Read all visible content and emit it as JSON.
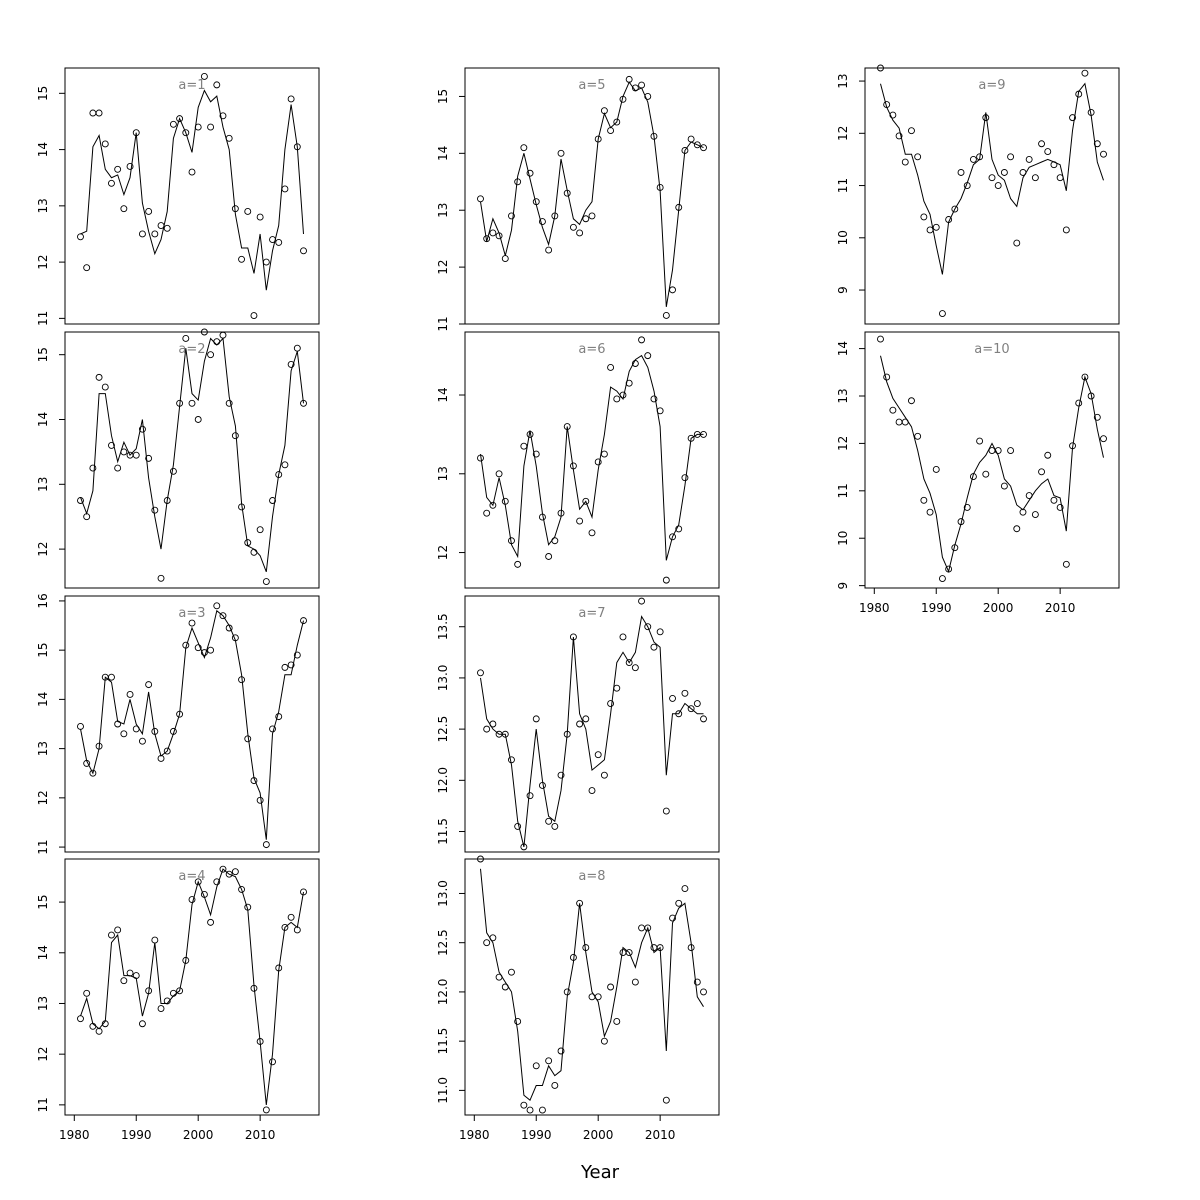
{
  "chart_data": {
    "type": "scatter",
    "xlabel": "Year",
    "x_ticks": [
      1980,
      1990,
      2000,
      2010
    ],
    "years": [
      1981,
      1982,
      1983,
      1984,
      1985,
      1986,
      1987,
      1988,
      1989,
      1990,
      1991,
      1992,
      1993,
      1994,
      1995,
      1996,
      1997,
      1998,
      1999,
      2000,
      2001,
      2002,
      2003,
      2004,
      2005,
      2006,
      2007,
      2008,
      2009,
      2010,
      2011,
      2012,
      2013,
      2014,
      2015,
      2016,
      2017
    ],
    "panels": [
      {
        "label": "a=1",
        "col": 0,
        "row": 0,
        "ylim": [
          10.9,
          15.45
        ],
        "yticks": [
          11,
          12,
          13,
          14,
          15
        ],
        "observed": [
          12.45,
          11.9,
          14.65,
          14.65,
          14.1,
          13.4,
          13.65,
          12.95,
          13.7,
          14.3,
          12.5,
          12.9,
          12.5,
          12.65,
          12.6,
          14.45,
          14.55,
          14.3,
          13.6,
          14.4,
          15.3,
          14.4,
          15.15,
          14.6,
          14.2,
          12.95,
          12.05,
          12.9,
          11.05,
          12.8,
          12.0,
          12.4,
          12.35,
          13.3,
          14.9,
          14.05,
          12.2
        ],
        "fitted": [
          12.5,
          12.55,
          14.05,
          14.25,
          13.65,
          13.5,
          13.55,
          13.2,
          13.5,
          14.3,
          13.05,
          12.55,
          12.15,
          12.4,
          12.9,
          14.2,
          14.55,
          14.3,
          13.95,
          14.75,
          15.05,
          14.85,
          14.95,
          14.4,
          14.0,
          12.85,
          12.25,
          12.25,
          11.8,
          12.5,
          11.5,
          12.2,
          12.65,
          14.0,
          14.8,
          14.05,
          12.5
        ]
      },
      {
        "label": "a=2",
        "col": 0,
        "row": 1,
        "ylim": [
          11.4,
          15.35
        ],
        "yticks": [
          12,
          13,
          14,
          15
        ],
        "observed": [
          12.75,
          12.5,
          13.25,
          14.65,
          14.5,
          13.6,
          13.25,
          13.5,
          13.45,
          13.45,
          13.85,
          13.4,
          12.6,
          11.55,
          12.75,
          13.2,
          14.25,
          15.25,
          14.25,
          14.0,
          15.35,
          15.0,
          15.2,
          15.3,
          14.25,
          13.75,
          12.65,
          12.1,
          11.95,
          12.3,
          11.5,
          12.75,
          13.15,
          13.3,
          14.85,
          15.1,
          14.25
        ],
        "fitted": [
          12.8,
          12.55,
          12.9,
          14.4,
          14.4,
          13.75,
          13.35,
          13.65,
          13.45,
          13.55,
          14.0,
          13.1,
          12.5,
          12.0,
          12.75,
          13.3,
          14.2,
          15.1,
          14.4,
          14.3,
          14.9,
          15.25,
          15.15,
          15.25,
          14.35,
          13.9,
          12.7,
          12.05,
          12.0,
          11.9,
          11.65,
          12.5,
          13.15,
          13.6,
          14.75,
          15.05,
          14.25
        ]
      },
      {
        "label": "a=3",
        "col": 0,
        "row": 2,
        "ylim": [
          10.9,
          16.1
        ],
        "yticks": [
          11,
          12,
          13,
          14,
          15,
          16
        ],
        "observed": [
          13.45,
          12.7,
          12.5,
          13.05,
          14.45,
          14.45,
          13.5,
          13.3,
          14.1,
          13.4,
          13.15,
          14.3,
          13.35,
          12.8,
          12.95,
          13.35,
          13.7,
          15.1,
          15.55,
          15.05,
          14.95,
          15.0,
          15.9,
          15.7,
          15.45,
          15.25,
          14.4,
          13.2,
          12.35,
          11.95,
          11.05,
          13.4,
          13.65,
          14.65,
          14.7,
          14.9,
          15.6
        ],
        "fitted": [
          13.4,
          12.75,
          12.5,
          13.0,
          14.45,
          14.35,
          13.55,
          13.5,
          14.0,
          13.5,
          13.3,
          14.15,
          13.3,
          12.85,
          12.95,
          13.3,
          13.7,
          15.05,
          15.45,
          15.15,
          14.85,
          15.25,
          15.8,
          15.7,
          15.5,
          15.2,
          14.5,
          13.3,
          12.4,
          12.1,
          11.15,
          13.3,
          13.75,
          14.5,
          14.5,
          15.1,
          15.6
        ],
        "comment": ""
      },
      {
        "label": "a=4",
        "col": 0,
        "row": 3,
        "ylim": [
          10.8,
          15.85
        ],
        "yticks": [
          11,
          12,
          13,
          14,
          15
        ],
        "observed": [
          12.7,
          13.2,
          12.55,
          12.45,
          12.6,
          14.35,
          14.45,
          13.45,
          13.6,
          13.55,
          12.6,
          13.25,
          14.25,
          12.9,
          13.05,
          13.2,
          13.25,
          13.85,
          15.05,
          15.4,
          15.15,
          14.6,
          15.4,
          15.65,
          15.55,
          15.6,
          15.25,
          14.9,
          13.3,
          12.25,
          10.9,
          11.85,
          13.7,
          14.5,
          14.7,
          14.45,
          15.2
        ],
        "fitted": [
          12.75,
          13.1,
          12.6,
          12.5,
          12.65,
          14.2,
          14.35,
          13.55,
          13.55,
          13.5,
          12.75,
          13.2,
          14.2,
          13.0,
          13.0,
          13.15,
          13.25,
          13.85,
          14.95,
          15.4,
          15.1,
          14.75,
          15.3,
          15.65,
          15.55,
          15.5,
          15.25,
          14.85,
          13.35,
          12.25,
          11.0,
          12.0,
          13.65,
          14.5,
          14.6,
          14.5,
          15.2
        ]
      },
      {
        "label": "a=5",
        "col": 1,
        "row": 0,
        "ylim": [
          11.0,
          15.5
        ],
        "yticks": [
          11,
          12,
          13,
          14,
          15
        ],
        "observed": [
          13.2,
          12.5,
          12.6,
          12.55,
          12.15,
          12.9,
          13.5,
          14.1,
          13.65,
          13.15,
          12.8,
          12.3,
          12.9,
          14.0,
          13.3,
          12.7,
          12.6,
          12.85,
          12.9,
          14.25,
          14.75,
          14.4,
          14.55,
          14.95,
          15.3,
          15.15,
          15.2,
          15.0,
          14.3,
          13.4,
          11.15,
          11.6,
          13.05,
          14.05,
          14.25,
          14.15,
          14.1
        ],
        "fitted": [
          13.15,
          12.45,
          12.85,
          12.6,
          12.2,
          12.65,
          13.6,
          14.0,
          13.55,
          13.1,
          12.7,
          12.4,
          12.9,
          13.9,
          13.35,
          12.85,
          12.75,
          13.0,
          13.15,
          14.25,
          14.7,
          14.45,
          14.55,
          15.0,
          15.25,
          15.1,
          15.15,
          14.9,
          14.3,
          13.35,
          11.3,
          11.95,
          13.0,
          14.05,
          14.2,
          14.15,
          14.1
        ]
      },
      {
        "label": "a=6",
        "col": 1,
        "row": 1,
        "ylim": [
          11.55,
          14.8
        ],
        "yticks": [
          12.0,
          13.0,
          14.0
        ],
        "observed": [
          13.2,
          12.5,
          12.6,
          13.0,
          12.65,
          12.15,
          11.85,
          13.35,
          13.5,
          13.25,
          12.45,
          11.95,
          12.15,
          12.5,
          13.6,
          13.1,
          12.4,
          12.65,
          12.25,
          13.15,
          13.25,
          14.35,
          13.95,
          14.0,
          14.15,
          14.4,
          14.7,
          14.5,
          13.95,
          13.8,
          11.65,
          12.2,
          12.3,
          12.95,
          13.45,
          13.5,
          13.5
        ],
        "fitted": [
          13.25,
          12.7,
          12.6,
          12.95,
          12.6,
          12.1,
          11.95,
          13.1,
          13.55,
          13.1,
          12.5,
          12.1,
          12.2,
          12.45,
          13.6,
          13.05,
          12.55,
          12.65,
          12.45,
          13.05,
          13.5,
          14.1,
          14.05,
          13.95,
          14.3,
          14.45,
          14.5,
          14.35,
          14.05,
          13.6,
          11.9,
          12.2,
          12.35,
          12.85,
          13.45,
          13.5,
          13.5
        ]
      },
      {
        "label": "a=7",
        "col": 1,
        "row": 2,
        "ylim": [
          11.3,
          13.8
        ],
        "yticks": [
          11.5,
          12.0,
          12.5,
          13.0,
          13.5
        ],
        "observed": [
          13.05,
          12.5,
          12.55,
          12.45,
          12.45,
          12.2,
          11.55,
          11.35,
          11.85,
          12.6,
          11.95,
          11.6,
          11.55,
          12.05,
          12.45,
          13.4,
          12.55,
          12.6,
          11.9,
          12.25,
          12.05,
          12.75,
          12.9,
          13.4,
          13.15,
          13.1,
          13.75,
          13.5,
          13.3,
          13.45,
          11.7,
          12.8,
          12.65,
          12.85,
          12.7,
          12.75,
          12.6
        ],
        "fitted": [
          13.0,
          12.6,
          12.5,
          12.45,
          12.45,
          12.15,
          11.6,
          11.35,
          11.95,
          12.5,
          12.0,
          11.65,
          11.6,
          11.9,
          12.45,
          13.4,
          12.65,
          12.5,
          12.1,
          12.15,
          12.2,
          12.65,
          13.15,
          13.25,
          13.15,
          13.25,
          13.6,
          13.5,
          13.35,
          13.3,
          12.05,
          12.65,
          12.65,
          12.75,
          12.7,
          12.65,
          12.65
        ]
      },
      {
        "label": "a=8",
        "col": 1,
        "row": 3,
        "ylim": [
          10.75,
          13.35
        ],
        "yticks": [
          11.0,
          11.5,
          12.0,
          12.5,
          13.0
        ],
        "observed": [
          13.35,
          12.5,
          12.55,
          12.15,
          12.05,
          12.2,
          11.7,
          10.85,
          10.8,
          11.25,
          10.8,
          11.3,
          11.05,
          11.4,
          12.0,
          12.35,
          12.9,
          12.45,
          11.95,
          11.95,
          11.5,
          12.05,
          11.7,
          12.4,
          12.4,
          12.1,
          12.65,
          12.65,
          12.45,
          12.45,
          10.9,
          12.75,
          12.9,
          13.05,
          12.45,
          12.1,
          12.0
        ],
        "fitted": [
          13.25,
          12.6,
          12.5,
          12.2,
          12.1,
          12.0,
          11.6,
          10.95,
          10.9,
          11.05,
          11.05,
          11.25,
          11.15,
          11.2,
          11.95,
          12.3,
          12.9,
          12.4,
          12.0,
          11.9,
          11.55,
          11.7,
          12.05,
          12.45,
          12.4,
          12.25,
          12.5,
          12.65,
          12.4,
          12.45,
          11.4,
          12.7,
          12.85,
          12.9,
          12.5,
          11.95,
          11.85
        ]
      },
      {
        "label": "a=9",
        "col": 2,
        "row": 0,
        "ylim": [
          8.35,
          13.25
        ],
        "yticks": [
          9,
          10,
          11,
          12,
          13
        ],
        "observed": [
          13.25,
          12.55,
          12.35,
          11.95,
          11.45,
          12.05,
          11.55,
          10.4,
          10.15,
          10.2,
          8.55,
          10.35,
          10.55,
          11.25,
          11.0,
          11.5,
          11.55,
          12.3,
          11.15,
          11.0,
          11.25,
          11.55,
          9.9,
          11.25,
          11.5,
          11.15,
          11.8,
          11.65,
          11.4,
          11.15,
          10.15,
          12.3,
          12.75,
          13.15,
          12.4,
          11.8,
          11.6
        ],
        "fitted": [
          12.95,
          12.5,
          12.25,
          12.1,
          11.6,
          11.6,
          11.2,
          10.7,
          10.45,
          9.85,
          9.3,
          10.3,
          10.55,
          10.75,
          11.05,
          11.4,
          11.5,
          12.4,
          11.5,
          11.2,
          11.1,
          10.75,
          10.6,
          11.15,
          11.35,
          11.4,
          11.45,
          11.5,
          11.45,
          11.4,
          10.9,
          12.05,
          12.8,
          12.95,
          12.35,
          11.45,
          11.1
        ]
      },
      {
        "label": "a=10",
        "col": 2,
        "row": 1,
        "ylim": [
          8.95,
          14.35
        ],
        "yticks": [
          9,
          10,
          11,
          12,
          13,
          14
        ],
        "observed": [
          14.2,
          13.4,
          12.7,
          12.45,
          12.45,
          12.9,
          12.15,
          10.8,
          10.55,
          11.45,
          9.15,
          9.35,
          9.8,
          10.35,
          10.65,
          11.3,
          12.05,
          11.35,
          11.85,
          11.85,
          11.1,
          11.85,
          10.2,
          10.55,
          10.9,
          10.5,
          11.4,
          11.75,
          10.8,
          10.65,
          9.45,
          11.95,
          12.85,
          13.4,
          13.0,
          12.55,
          12.1
        ],
        "fitted": [
          13.85,
          13.3,
          12.95,
          12.75,
          12.55,
          12.35,
          11.85,
          11.25,
          10.95,
          10.5,
          9.6,
          9.3,
          9.85,
          10.3,
          10.85,
          11.35,
          11.6,
          11.75,
          12.0,
          11.75,
          11.25,
          11.1,
          10.7,
          10.6,
          10.8,
          11.0,
          11.15,
          11.25,
          10.9,
          10.85,
          10.15,
          11.9,
          12.75,
          13.4,
          13.05,
          12.3,
          11.7
        ]
      }
    ]
  }
}
